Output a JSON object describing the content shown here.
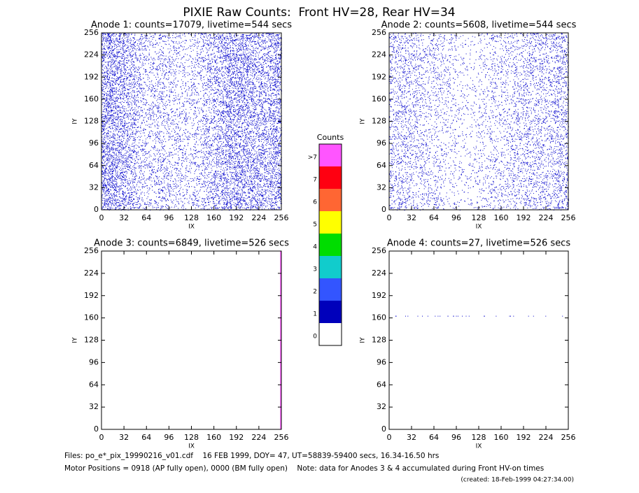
{
  "title": "PIXIE Raw Counts:  Front HV=28, Rear HV=34",
  "footer": [
    "Files: po_e*_pix_19990216_v01.cdf    16 FEB 1999, DOY= 47, UT=58839-59400 secs, 16.34-16.50 hrs",
    "Motor Positions = 0918 (AP fully open), 0000 (BM fully open)    Note: data for Anodes 3 & 4 accumulated during Front HV-on times",
    "(created: 18-Feb-1999 04:27:34.00)"
  ],
  "colorbar": {
    "title": "Counts",
    "labels": [
      ">7",
      "7",
      "6",
      "5",
      "4",
      "3",
      "2",
      "1",
      "0"
    ],
    "colors": [
      "#ff55ff",
      "#ff0011",
      "#ff6633",
      "#ffff00",
      "#00dd00",
      "#11cccc",
      "#3355ff",
      "#0000bb",
      "#ffffff"
    ]
  },
  "chart_data": [
    {
      "type": "pixelmap",
      "title": "Anode 1: counts=17079, livetime=544 secs",
      "x_label": "IX",
      "y_label": "IY",
      "xlim": [
        0,
        256
      ],
      "ylim": [
        0,
        256
      ],
      "xticks": [
        0,
        32,
        64,
        96,
        128,
        160,
        192,
        224,
        256
      ],
      "yticks": [
        0,
        32,
        64,
        96,
        128,
        160,
        192,
        224,
        256
      ],
      "color": "#0000cc",
      "column_density": [
        0.3,
        0.25,
        0.2,
        0.12,
        0.1,
        0.12,
        0.1,
        0.08,
        0.1,
        0.15,
        0.2,
        0.25,
        0.25,
        0.22,
        0.2,
        0.25
      ]
    },
    {
      "type": "pixelmap",
      "title": "Anode 2: counts=5608, livetime=544 secs",
      "x_label": "IX",
      "y_label": "IY",
      "xlim": [
        0,
        256
      ],
      "ylim": [
        0,
        256
      ],
      "xticks": [
        0,
        32,
        64,
        96,
        128,
        160,
        192,
        224,
        256
      ],
      "yticks": [
        0,
        32,
        64,
        96,
        128,
        160,
        192,
        224,
        256
      ],
      "color": "#0000cc",
      "column_density": [
        0.12,
        0.12,
        0.1,
        0.08,
        0.08,
        0.06,
        0.04,
        0.04,
        0.06,
        0.08,
        0.08,
        0.1,
        0.12,
        0.12,
        0.12,
        0.15
      ]
    },
    {
      "type": "pixelmap",
      "title": "Anode 3: counts=6849, livetime=526 secs",
      "x_label": "IX",
      "y_label": "IY",
      "xlim": [
        0,
        256
      ],
      "ylim": [
        0,
        256
      ],
      "xticks": [
        0,
        32,
        64,
        96,
        128,
        160,
        192,
        224,
        256
      ],
      "yticks": [
        0,
        32,
        64,
        96,
        128,
        160,
        192,
        224,
        256
      ],
      "color": "#0000cc",
      "edge_column": 255,
      "edge_color": "#ff55ff"
    },
    {
      "type": "pixelmap",
      "title": "Anode 4: counts=27, livetime=526 secs",
      "x_label": "IX",
      "y_label": "IY",
      "xlim": [
        0,
        256
      ],
      "ylim": [
        0,
        256
      ],
      "xticks": [
        0,
        32,
        64,
        96,
        128,
        160,
        192,
        224,
        256
      ],
      "yticks": [
        0,
        32,
        64,
        96,
        128,
        160,
        192,
        224,
        256
      ],
      "color": "#0000cc",
      "row": 163,
      "row_density": [
        0.1,
        0.15,
        0.1,
        0.05,
        0.2,
        0.3,
        0.2,
        0.05,
        0.1,
        0.05,
        0.1,
        0.05,
        0.15,
        0.05,
        0.0,
        0.05
      ]
    }
  ]
}
